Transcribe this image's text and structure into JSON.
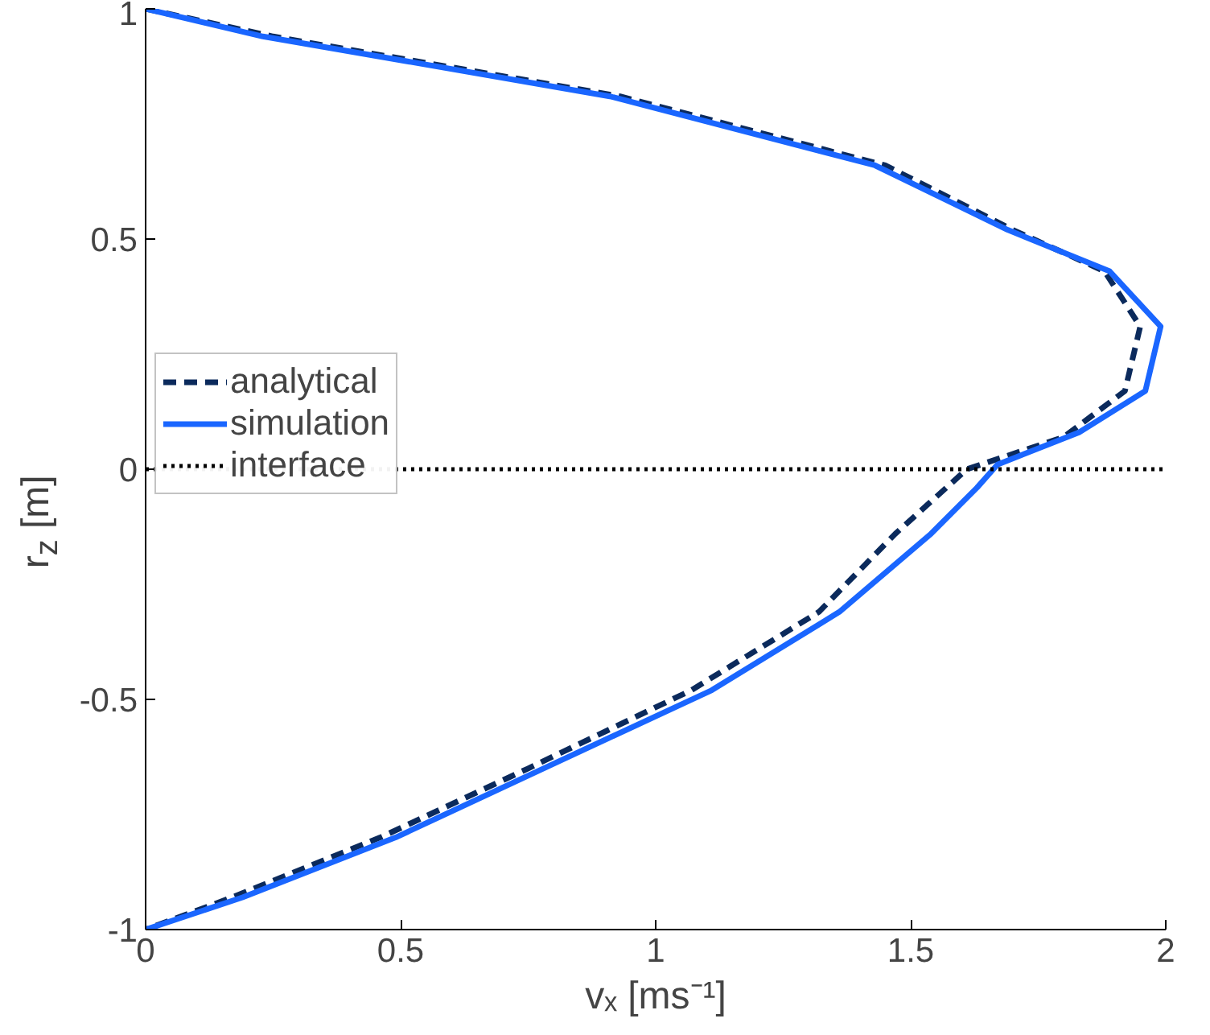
{
  "chart_data": {
    "type": "line",
    "xlabel": "vₓ [ms⁻¹]",
    "ylabel": "r$_{z}$ [m]",
    "xlim": [
      0,
      2
    ],
    "ylim": [
      -1,
      1
    ],
    "xticks": [
      0,
      0.5,
      1,
      1.5,
      2
    ],
    "yticks": [
      -1,
      -0.5,
      0,
      0.5,
      1
    ],
    "grid": false,
    "legend": "top left",
    "series": [
      {
        "name": "analytical",
        "color": "#0b2a5c",
        "line_style": "dashed",
        "x": [
          0,
          0.25,
          0.93,
          1.45,
          1.7,
          1.88,
          1.95,
          1.92,
          1.8,
          1.61,
          1.55,
          1.47,
          1.32,
          1.07,
          0.75,
          0.46,
          0.17,
          0
        ],
        "values": [
          1.0,
          0.94,
          0.81,
          0.66,
          0.52,
          0.43,
          0.31,
          0.17,
          0.07,
          0.0,
          -0.06,
          -0.14,
          -0.31,
          -0.48,
          -0.65,
          -0.8,
          -0.93,
          -1.0
        ]
      },
      {
        "name": "simulation",
        "color": "#1a66ff",
        "line_style": "solid",
        "x": [
          0,
          0.23,
          0.91,
          1.43,
          1.69,
          1.89,
          1.99,
          1.96,
          1.83,
          1.67,
          1.63,
          1.54,
          1.36,
          1.11,
          0.78,
          0.49,
          0.19,
          0
        ],
        "values": [
          1.0,
          0.94,
          0.81,
          0.66,
          0.52,
          0.43,
          0.31,
          0.17,
          0.08,
          0.01,
          -0.04,
          -0.14,
          -0.31,
          -0.48,
          -0.65,
          -0.8,
          -0.93,
          -1.0
        ]
      }
    ],
    "ref_lines": [
      {
        "axis": "y",
        "value": 0,
        "label": "interface",
        "color": "#000000",
        "line_style": "dotted"
      }
    ]
  }
}
